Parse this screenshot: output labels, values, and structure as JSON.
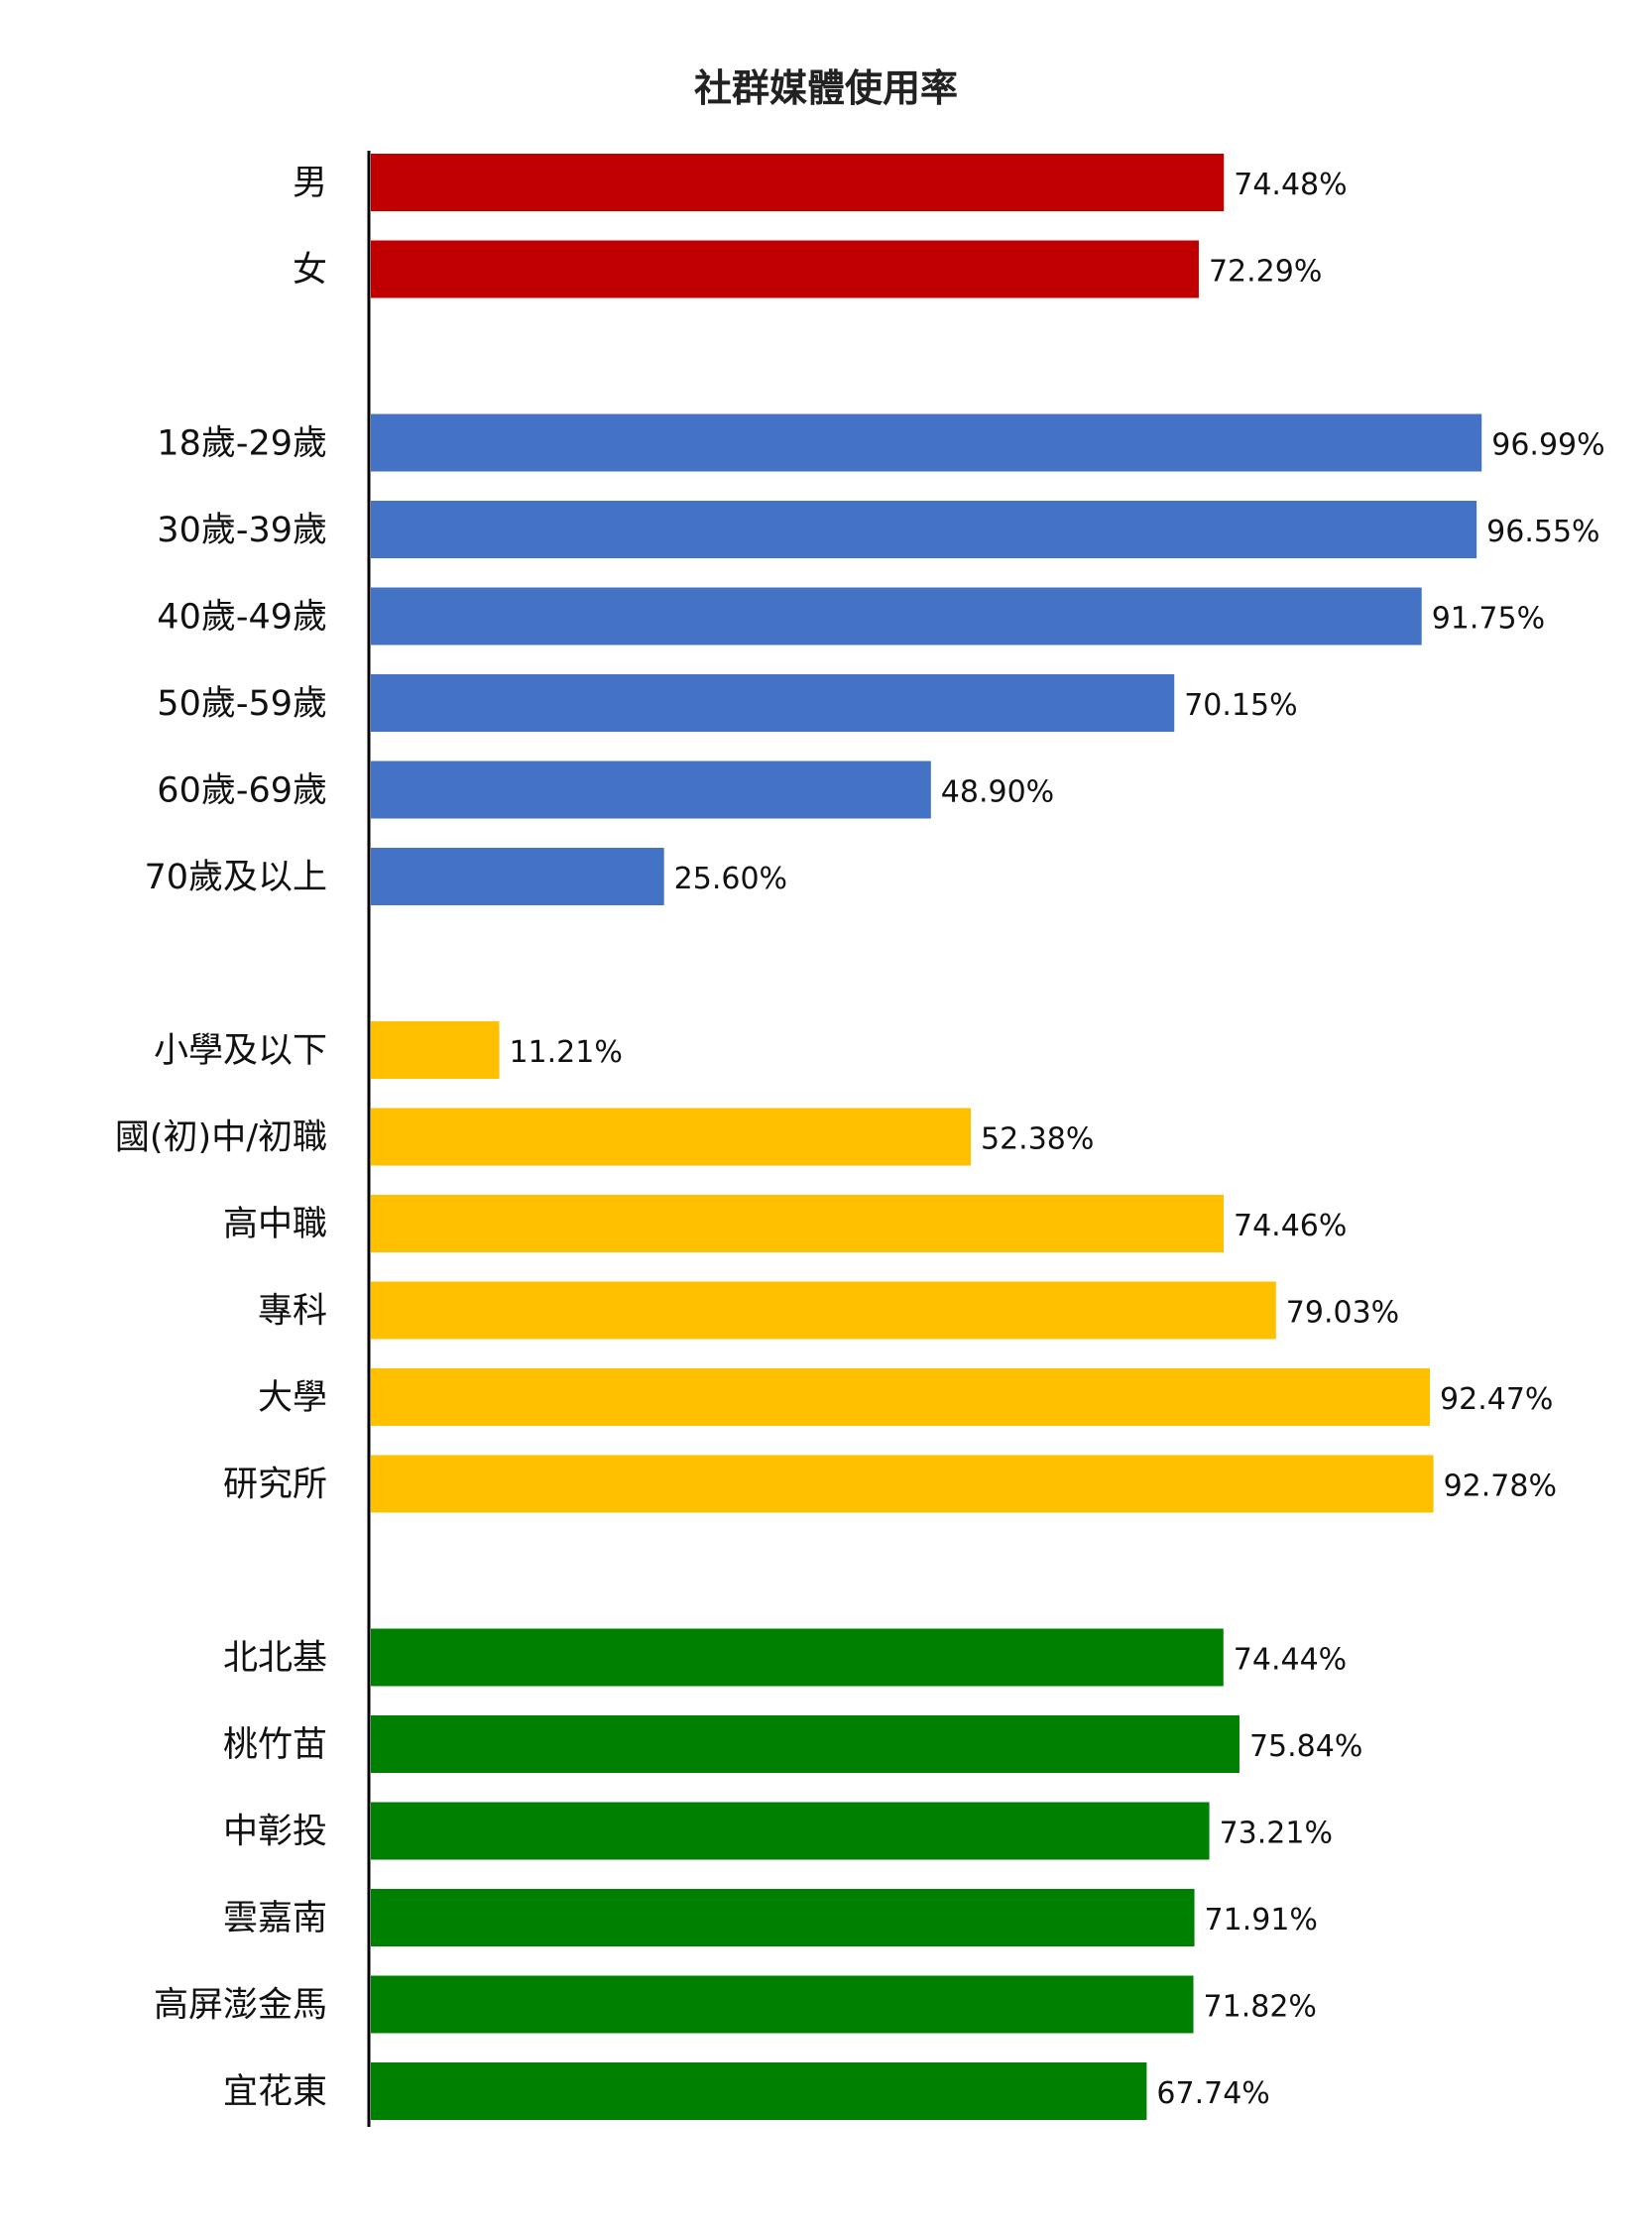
{
  "chart_data": {
    "type": "bar",
    "orientation": "horizontal",
    "title": "社群媒體使用率",
    "xlim": [
      0,
      100
    ],
    "grid": false,
    "groups": [
      {
        "color": "#C00000",
        "categories": [
          "男",
          "女"
        ],
        "values": [
          74.48,
          72.29
        ],
        "labels": [
          "74.48%",
          "72.29%"
        ]
      },
      {
        "color": "#4472C4",
        "categories": [
          "18歲-29歲",
          "30歲-39歲",
          "40歲-49歲",
          "50歲-59歲",
          "60歲-69歲",
          "70歲及以上"
        ],
        "values": [
          96.99,
          96.55,
          91.75,
          70.15,
          48.9,
          25.6
        ],
        "labels": [
          "96.99%",
          "96.55%",
          "91.75%",
          "70.15%",
          "48.90%",
          "25.60%"
        ]
      },
      {
        "color": "#FFC000",
        "categories": [
          "小學及以下",
          "國(初)中/初職",
          "高中職",
          "專科",
          "大學",
          "研究所"
        ],
        "values": [
          11.21,
          52.38,
          74.46,
          79.03,
          92.47,
          92.78
        ],
        "labels": [
          "11.21%",
          "52.38%",
          "74.46%",
          "79.03%",
          "92.47%",
          "92.78%"
        ]
      },
      {
        "color": "#008000",
        "categories": [
          "北北基",
          "桃竹苗",
          "中彰投",
          "雲嘉南",
          "高屏澎金馬",
          "宜花東"
        ],
        "values": [
          74.44,
          75.84,
          73.21,
          71.91,
          71.82,
          67.74
        ],
        "labels": [
          "74.44%",
          "75.84%",
          "73.21%",
          "71.91%",
          "71.82%",
          "67.74%"
        ]
      }
    ]
  }
}
